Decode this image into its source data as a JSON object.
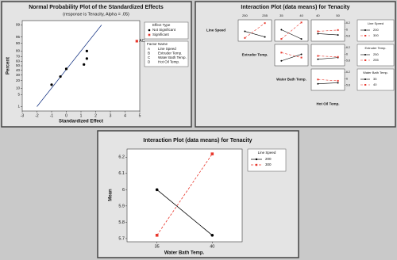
{
  "chart_data": [
    {
      "type": "normal_probability",
      "title": "Normal Probability Plot of the Standardized Effects",
      "subtitle": "(response is Tenacity, Alpha = .05)",
      "x_label": "Standardized Effect",
      "y_label": "Percent",
      "xlim": [
        -3,
        5
      ],
      "xticks": [
        -3,
        -2,
        -1,
        0,
        1,
        2,
        3,
        4,
        5
      ],
      "ylim": [
        0.5,
        99.5
      ],
      "yticks": [
        1,
        5,
        10,
        20,
        30,
        40,
        50,
        60,
        70,
        80,
        90,
        95,
        99
      ],
      "y_scale": "probit",
      "reference_line": {
        "x": [
          -2,
          2.4
        ],
        "values": [
          1,
          99
        ],
        "color": "#1f3c88"
      },
      "legend_title": "Effect Type",
      "series": [
        {
          "name": "Not Significant",
          "color": "#000000",
          "marker": "circle",
          "x": [
            -1.0,
            -0.4,
            0,
            1.2,
            1.4,
            1.4
          ],
          "values": [
            14,
            27,
            43,
            53,
            66,
            80
          ]
        },
        {
          "name": "Significant",
          "color": "#e8372c",
          "marker": "square",
          "x": [
            4.8
          ],
          "values": [
            92
          ],
          "labels": [
            "AC"
          ]
        }
      ],
      "factor_table": {
        "header": [
          "Factor",
          "Name"
        ],
        "rows": [
          [
            "A",
            "Line Speed"
          ],
          [
            "B",
            "Extruder Temp."
          ],
          [
            "C",
            "Water Bath Temp."
          ],
          [
            "D",
            "Hot Oil Temp."
          ]
        ]
      }
    },
    {
      "type": "interaction_matrix",
      "title": "Interaction Plot (data means) for Tenacity",
      "factors": [
        {
          "name": "Line Speed",
          "levels": [
            "200",
            "300"
          ]
        },
        {
          "name": "Extruder Temp.",
          "levels": [
            "250",
            "255"
          ]
        },
        {
          "name": "Water Bath Temp.",
          "levels": [
            "35",
            "40"
          ]
        },
        {
          "name": "Hot Oil Temp.",
          "levels": [
            "40",
            "50"
          ]
        }
      ],
      "colors": [
        "#000000",
        "#e8372c"
      ],
      "markers": [
        "circle",
        "square"
      ],
      "line_styles": [
        "solid",
        "dashed"
      ],
      "ylim": [
        5.65,
        6.3
      ],
      "yticks": [
        5.8,
        6.0,
        6.2
      ],
      "panels": [
        [
          [
            [
              5.95,
              5.78
            ],
            [
              5.75,
              6.2
            ]
          ],
          [
            [
              6.0,
              5.72
            ],
            [
              5.72,
              6.22
            ]
          ],
          [
            [
              5.88,
              5.84
            ],
            [
              5.95,
              5.99
            ]
          ]
        ],
        [
          [
            [
              5.8,
              6.0
            ],
            [
              6.05,
              5.9
            ]
          ],
          [
            [
              5.85,
              5.9
            ],
            [
              5.95,
              5.92
            ]
          ]
        ],
        [
          [
            [
              5.85,
              5.88
            ],
            [
              5.98,
              5.94
            ]
          ]
        ]
      ]
    },
    {
      "type": "line",
      "title": "Interaction Plot (data means) for Tenacity",
      "x_label": "Water Bath Temp.",
      "y_label": "Mean",
      "categories": [
        "35",
        "40"
      ],
      "ylim": [
        5.68,
        6.25
      ],
      "yticks": [
        5.7,
        5.8,
        5.9,
        6.0,
        6.1,
        6.2
      ],
      "legend_title": "Line Speed",
      "series": [
        {
          "name": "200",
          "color": "#000000",
          "marker": "circle",
          "line_style": "solid",
          "values": [
            6.0,
            5.72
          ]
        },
        {
          "name": "300",
          "color": "#e8372c",
          "marker": "square",
          "line_style": "dashed",
          "values": [
            5.72,
            6.22
          ]
        }
      ]
    }
  ]
}
